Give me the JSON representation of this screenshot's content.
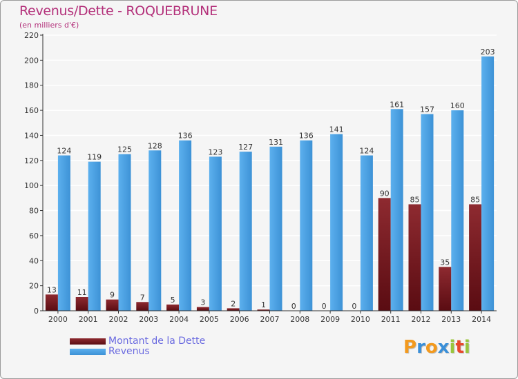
{
  "title": "Revenus/Dette - ROQUEBRUNE",
  "subtitle": "(en milliers d'€)",
  "chart_data": {
    "type": "bar",
    "title": "Revenus/Dette - ROQUEBRUNE",
    "subtitle": "(en milliers d'€)",
    "xlabel": "",
    "ylabel": "",
    "categories": [
      "2000",
      "2001",
      "2002",
      "2003",
      "2004",
      "2005",
      "2006",
      "2007",
      "2008",
      "2009",
      "2010",
      "2011",
      "2012",
      "2013",
      "2014"
    ],
    "series": [
      {
        "name": "Montant de la Dette",
        "color": "#7a1c22",
        "values": [
          13,
          11,
          9,
          7,
          5,
          3,
          2,
          1,
          0,
          0,
          0,
          90,
          85,
          35,
          85
        ]
      },
      {
        "name": "Revenus",
        "color": "#4aa3e6",
        "values": [
          124,
          119,
          125,
          128,
          136,
          123,
          127,
          131,
          136,
          141,
          124,
          161,
          157,
          160,
          203
        ]
      }
    ],
    "ylim": [
      0,
      220
    ],
    "yticks": [
      0,
      20,
      40,
      60,
      80,
      100,
      120,
      140,
      160,
      180,
      200,
      220
    ],
    "grid": true,
    "legend": "bottom-left"
  },
  "legend": {
    "debt_label": "Montant de la Dette",
    "revenue_label": "Revenus"
  },
  "logo": {
    "letters": [
      "P",
      "r",
      "o",
      "x",
      "i",
      "t",
      "i"
    ],
    "colors": [
      "#f39a1e",
      "#3a8fd8",
      "#f39a1e",
      "#3a8fd8",
      "#9ac53c",
      "#e8482c",
      "#9ac53c"
    ]
  },
  "colors": {
    "title": "#b3307a",
    "legend_text": "#6a6ae0",
    "grid": "#ffffff",
    "background": "#f5f5f5"
  }
}
